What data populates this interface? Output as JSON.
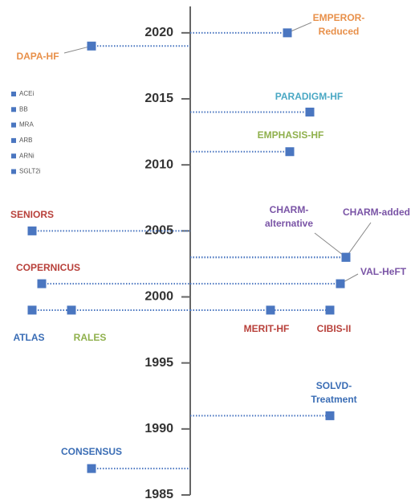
{
  "chart_data": {
    "type": "timeline",
    "ylim": [
      1985,
      2022
    ],
    "yticks": [
      1985,
      1990,
      1995,
      2000,
      2005,
      2010,
      2015,
      2020
    ],
    "marker_color": "#4a76c0",
    "series": [
      {
        "name": "ACEi",
        "color": "#3a6db5",
        "events": [
          {
            "label": [
              "ATLAS"
            ],
            "year": 1999
          },
          {
            "label": [
              "SOLVD-",
              "Treatment"
            ],
            "year": 1991
          },
          {
            "label": [
              "CONSENSUS"
            ],
            "year": 1987
          }
        ]
      },
      {
        "name": "BB",
        "color": "#b8403a",
        "events": [
          {
            "label": [
              "SENIORS"
            ],
            "year": 2005
          },
          {
            "label": [
              "COPERNICUS"
            ],
            "year": 2001
          },
          {
            "label": [
              "MERIT-HF"
            ],
            "year": 1999
          },
          {
            "label": [
              "CIBIS-II"
            ],
            "year": 1999
          }
        ]
      },
      {
        "name": "MRA",
        "color": "#8fb04c",
        "events": [
          {
            "label": [
              "EMPHASIS-HF"
            ],
            "year": 2011
          },
          {
            "label": [
              "RALES"
            ],
            "year": 1999
          }
        ]
      },
      {
        "name": "ARB",
        "color": "#7a54a6",
        "events": [
          {
            "label": [
              "CHARM-",
              "alternative"
            ],
            "year": 2003
          },
          {
            "label": [
              "CHARM-added"
            ],
            "year": 2003
          },
          {
            "label": [
              "VAL-HeFT"
            ],
            "year": 2001
          }
        ]
      },
      {
        "name": "ARNi",
        "color": "#4aa8c4",
        "events": [
          {
            "label": [
              "PARADIGM-HF"
            ],
            "year": 2014
          }
        ]
      },
      {
        "name": "SGLT2i",
        "color": "#e8904a",
        "events": [
          {
            "label": [
              "EMPEROR-",
              "Reduced"
            ],
            "year": 2020
          },
          {
            "label": [
              "DAPA-HF"
            ],
            "year": 2019
          }
        ]
      }
    ]
  }
}
